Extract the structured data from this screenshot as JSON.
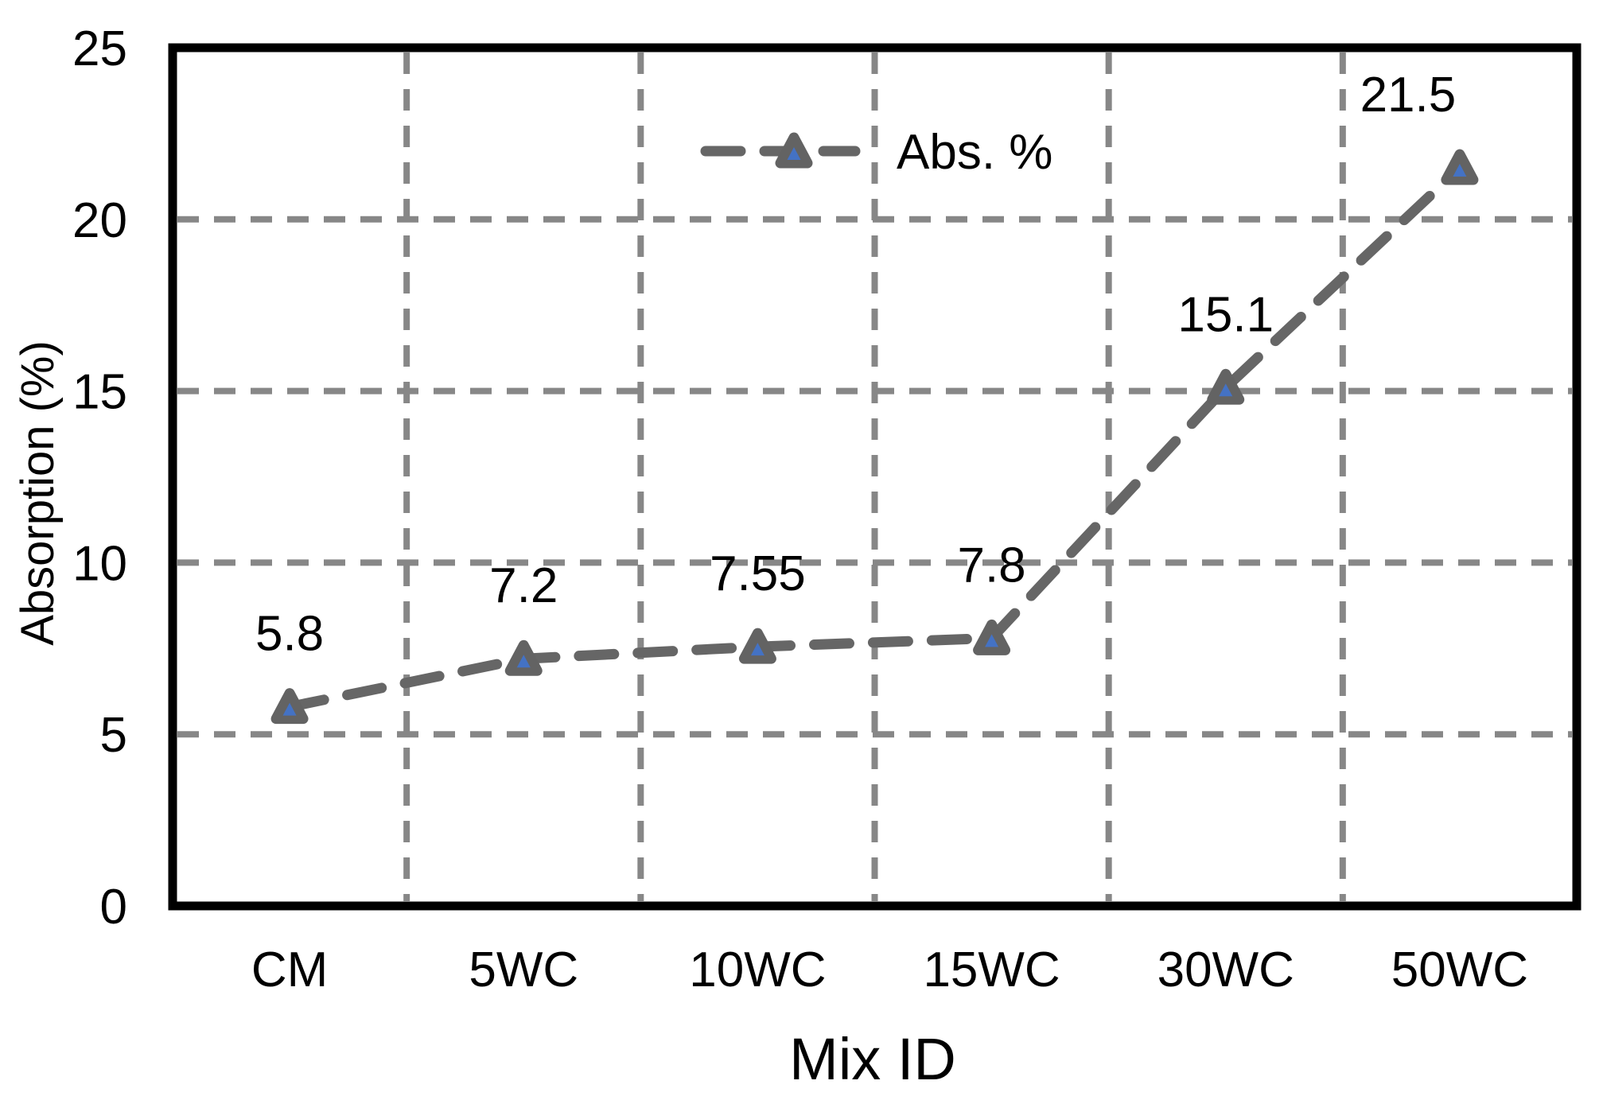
{
  "chart_data": {
    "type": "line",
    "title": "",
    "xlabel": "Mix ID",
    "ylabel": "Absorption (%)",
    "categories": [
      "CM",
      "5WC",
      "10WC",
      "15WC",
      "30WC",
      "50WC"
    ],
    "series": [
      {
        "name": "Abs. %",
        "values": [
          5.8,
          7.2,
          7.55,
          7.8,
          15.1,
          21.5
        ],
        "labels": [
          "5.8",
          "7.2",
          "7.55",
          "7.8",
          "15.1",
          "21.5"
        ]
      }
    ],
    "label_dx": [
      0,
      0,
      0,
      0,
      0,
      -65
    ],
    "ylim": [
      0,
      25
    ],
    "yticks": [
      0,
      5,
      10,
      15,
      20,
      25
    ],
    "grid": "dashed, horizontal and vertical (at category boundaries)",
    "legend_position": "top-center-inside",
    "legend_label": "Abs. %",
    "marker": "triangle",
    "colors": {
      "series_line": "#666666",
      "marker_fill": "#636363",
      "marker_inner": "#4472c4",
      "gridline": "#878787",
      "axis_frame": "#000000",
      "text": "#000000",
      "background": "#ffffff"
    }
  }
}
